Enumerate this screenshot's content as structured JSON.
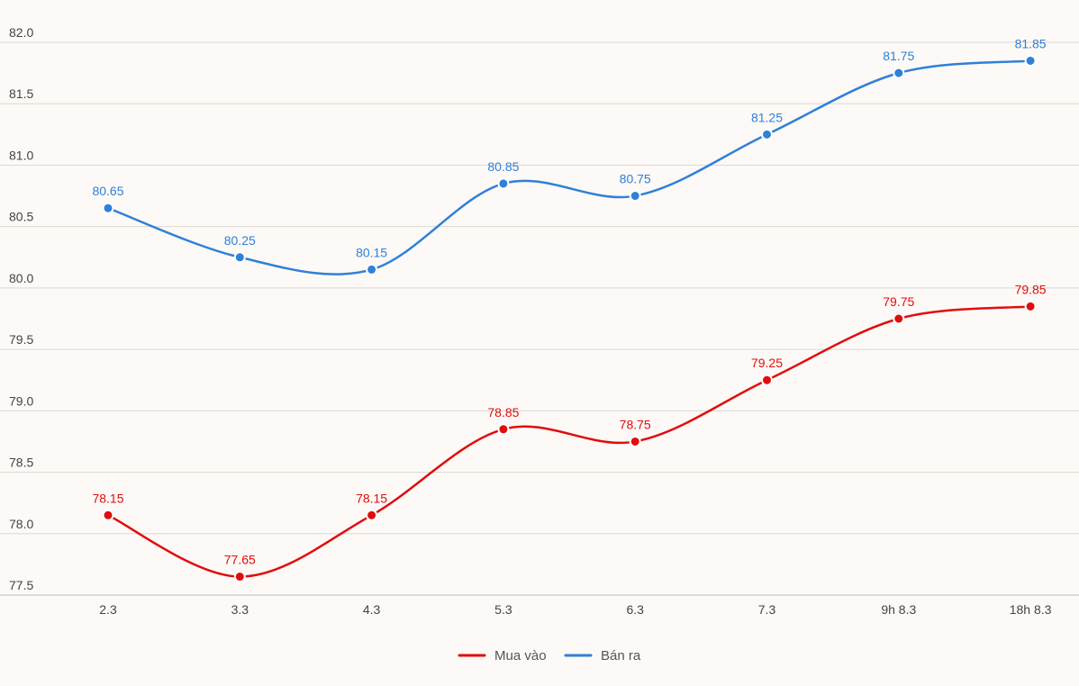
{
  "chart_data": {
    "type": "line",
    "title": "",
    "xlabel": "",
    "ylabel": "",
    "categories": [
      "2.3",
      "3.3",
      "4.3",
      "5.3",
      "6.3",
      "7.3",
      "9h 8.3",
      "18h 8.3"
    ],
    "ylim": [
      77.5,
      82.0
    ],
    "yticks": [
      "77.5",
      "78.0",
      "78.5",
      "79.0",
      "79.5",
      "80.0",
      "80.5",
      "81.0",
      "81.5",
      "82.0"
    ],
    "grid": true,
    "legend_position": "bottom-center",
    "series": [
      {
        "name": "Mua vào",
        "color": "#e00d0d",
        "values": [
          78.15,
          77.65,
          78.15,
          78.85,
          78.75,
          79.25,
          79.75,
          79.85
        ],
        "labels": [
          "78.15",
          "77.65",
          "78.15",
          "78.85",
          "78.75",
          "79.25",
          "79.75",
          "79.85"
        ]
      },
      {
        "name": "Bán ra",
        "color": "#2f80d9",
        "values": [
          80.65,
          80.25,
          80.15,
          80.85,
          80.75,
          81.25,
          81.75,
          81.85
        ],
        "labels": [
          "80.65",
          "80.25",
          "80.15",
          "80.85",
          "80.75",
          "81.25",
          "81.75",
          "81.85"
        ]
      }
    ]
  }
}
